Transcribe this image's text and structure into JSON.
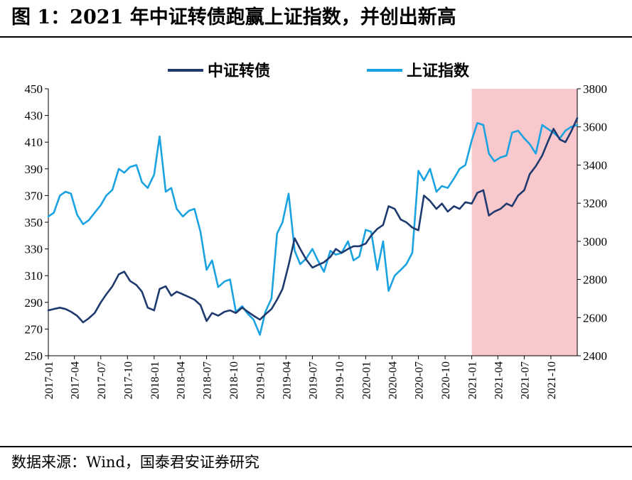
{
  "header": {
    "title": "图 1：2021 年中证转债跑赢上证指数，并创出新高"
  },
  "footer": {
    "source": "数据来源：Wind，国泰君安证券研究"
  },
  "chart_data": {
    "type": "line",
    "legend_position": "top-center",
    "grid": false,
    "x_ticks": [
      "2017-01",
      "2017-04",
      "2017-07",
      "2017-10",
      "2018-01",
      "2018-04",
      "2018-07",
      "2018-10",
      "2019-01",
      "2019-04",
      "2019-07",
      "2019-10",
      "2020-01",
      "2020-04",
      "2020-07",
      "2020-10",
      "2021-01",
      "2021-04",
      "2021-07",
      "2021-10"
    ],
    "xlim": [
      "2017-01-01",
      "2021-12-31"
    ],
    "y_left": {
      "lim": [
        250,
        450
      ],
      "ticks": [
        250,
        270,
        290,
        310,
        330,
        350,
        370,
        390,
        410,
        430,
        450
      ]
    },
    "y_right": {
      "lim": [
        2400,
        3800
      ],
      "ticks": [
        2400,
        2600,
        2800,
        3000,
        3200,
        3400,
        3600,
        3800
      ]
    },
    "highlight": {
      "from": "2021-01-01",
      "to": "2021-12-31",
      "color": "#f8c8cc"
    },
    "series": [
      {
        "name": "中证转债",
        "axis": "left",
        "color": "#1f3a6e",
        "x": [
          "2017-01-01",
          "2017-01-20",
          "2017-02-10",
          "2017-03-01",
          "2017-03-20",
          "2017-04-10",
          "2017-05-01",
          "2017-05-20",
          "2017-06-10",
          "2017-07-01",
          "2017-07-20",
          "2017-08-10",
          "2017-09-01",
          "2017-09-20",
          "2017-10-10",
          "2017-11-01",
          "2017-11-20",
          "2017-12-10",
          "2018-01-01",
          "2018-01-20",
          "2018-02-10",
          "2018-03-01",
          "2018-03-20",
          "2018-04-10",
          "2018-05-01",
          "2018-05-20",
          "2018-06-10",
          "2018-07-01",
          "2018-07-20",
          "2018-08-10",
          "2018-09-01",
          "2018-09-20",
          "2018-10-10",
          "2018-11-01",
          "2018-11-20",
          "2018-12-10",
          "2019-01-01",
          "2019-01-20",
          "2019-02-10",
          "2019-03-01",
          "2019-03-20",
          "2019-04-10",
          "2019-05-01",
          "2019-05-20",
          "2019-06-10",
          "2019-07-01",
          "2019-07-20",
          "2019-08-10",
          "2019-09-01",
          "2019-09-20",
          "2019-10-10",
          "2019-11-01",
          "2019-11-20",
          "2019-12-10",
          "2020-01-01",
          "2020-01-20",
          "2020-02-10",
          "2020-03-01",
          "2020-03-20",
          "2020-04-10",
          "2020-05-01",
          "2020-05-20",
          "2020-06-10",
          "2020-07-01",
          "2020-07-20",
          "2020-08-10",
          "2020-09-01",
          "2020-09-20",
          "2020-10-10",
          "2020-11-01",
          "2020-11-20",
          "2020-12-10",
          "2021-01-01",
          "2021-01-20",
          "2021-02-10",
          "2021-03-01",
          "2021-03-20",
          "2021-04-10",
          "2021-05-01",
          "2021-05-20",
          "2021-06-10",
          "2021-07-01",
          "2021-07-20",
          "2021-08-10",
          "2021-09-01",
          "2021-09-20",
          "2021-10-10",
          "2021-11-01",
          "2021-11-20",
          "2021-12-10",
          "2021-12-31"
        ],
        "values": [
          284,
          285,
          286,
          285,
          283,
          280,
          275,
          278,
          282,
          290,
          296,
          302,
          311,
          313,
          306,
          303,
          298,
          286,
          284,
          300,
          302,
          295,
          298,
          296,
          294,
          292,
          288,
          276,
          282,
          280,
          283,
          284,
          282,
          286,
          283,
          280,
          277,
          281,
          285,
          292,
          300,
          318,
          338,
          330,
          322,
          316,
          318,
          320,
          324,
          330,
          327,
          330,
          332,
          332,
          334,
          340,
          345,
          348,
          362,
          360,
          352,
          350,
          346,
          344,
          370,
          366,
          360,
          364,
          358,
          362,
          360,
          365,
          364,
          372,
          374,
          355,
          358,
          360,
          364,
          362,
          370,
          374,
          386,
          392,
          400,
          410,
          420,
          412,
          410,
          418,
          428
        ]
      },
      {
        "name": "上证指数",
        "axis": "right",
        "color": "#1aa3e0",
        "x": [
          "2017-01-01",
          "2017-01-20",
          "2017-02-10",
          "2017-03-01",
          "2017-03-20",
          "2017-04-10",
          "2017-05-01",
          "2017-05-20",
          "2017-06-10",
          "2017-07-01",
          "2017-07-20",
          "2017-08-10",
          "2017-09-01",
          "2017-09-20",
          "2017-10-10",
          "2017-11-01",
          "2017-11-20",
          "2017-12-10",
          "2018-01-01",
          "2018-01-20",
          "2018-02-10",
          "2018-03-01",
          "2018-03-20",
          "2018-04-10",
          "2018-05-01",
          "2018-05-20",
          "2018-06-10",
          "2018-07-01",
          "2018-07-20",
          "2018-08-10",
          "2018-09-01",
          "2018-09-20",
          "2018-10-10",
          "2018-11-01",
          "2018-11-20",
          "2018-12-10",
          "2019-01-01",
          "2019-01-20",
          "2019-02-10",
          "2019-03-01",
          "2019-03-20",
          "2019-04-10",
          "2019-05-01",
          "2019-05-20",
          "2019-06-10",
          "2019-07-01",
          "2019-07-20",
          "2019-08-10",
          "2019-09-01",
          "2019-09-20",
          "2019-10-10",
          "2019-11-01",
          "2019-11-20",
          "2019-12-10",
          "2020-01-01",
          "2020-01-20",
          "2020-02-10",
          "2020-03-01",
          "2020-03-20",
          "2020-04-10",
          "2020-05-01",
          "2020-05-20",
          "2020-06-10",
          "2020-07-01",
          "2020-07-20",
          "2020-08-10",
          "2020-09-01",
          "2020-09-20",
          "2020-10-10",
          "2020-11-01",
          "2020-11-20",
          "2020-12-10",
          "2021-01-01",
          "2021-01-20",
          "2021-02-10",
          "2021-03-01",
          "2021-03-20",
          "2021-04-10",
          "2021-05-01",
          "2021-05-20",
          "2021-06-10",
          "2021-07-01",
          "2021-07-20",
          "2021-08-10",
          "2021-09-01",
          "2021-09-20",
          "2021-10-10",
          "2021-11-01",
          "2021-11-20",
          "2021-12-10",
          "2021-12-31"
        ],
        "values": [
          3130,
          3150,
          3240,
          3260,
          3250,
          3140,
          3090,
          3110,
          3150,
          3190,
          3240,
          3270,
          3380,
          3360,
          3390,
          3400,
          3310,
          3280,
          3350,
          3550,
          3260,
          3280,
          3170,
          3130,
          3160,
          3170,
          3050,
          2850,
          2900,
          2760,
          2790,
          2800,
          2630,
          2660,
          2620,
          2590,
          2510,
          2630,
          2700,
          3040,
          3100,
          3250,
          2950,
          2880,
          2910,
          2960,
          2900,
          2840,
          2950,
          2930,
          2940,
          3000,
          2900,
          2920,
          3060,
          3050,
          2850,
          3000,
          2740,
          2820,
          2850,
          2880,
          2940,
          3370,
          3320,
          3380,
          3260,
          3290,
          3280,
          3330,
          3380,
          3400,
          3530,
          3620,
          3610,
          3460,
          3420,
          3440,
          3450,
          3570,
          3580,
          3540,
          3510,
          3460,
          3610,
          3590,
          3570,
          3540,
          3580,
          3600,
          3610
        ]
      }
    ]
  }
}
